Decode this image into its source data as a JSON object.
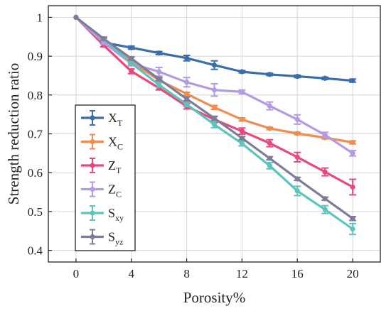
{
  "chart_data": {
    "type": "line",
    "xlabel": "Porosity%",
    "ylabel": "Strength reduction ratio",
    "xlim": [
      -2,
      22
    ],
    "ylim": [
      0.37,
      1.03
    ],
    "x_ticks": [
      "0",
      "4",
      "8",
      "12",
      "16",
      "20"
    ],
    "y_ticks": [
      "0.4",
      "0.5",
      "0.6",
      "0.7",
      "0.8",
      "0.9",
      "1"
    ],
    "grid": true,
    "legend_position": "bottom-left",
    "x": [
      0,
      2,
      4,
      6,
      8,
      10,
      12,
      14,
      16,
      18,
      20
    ],
    "series": [
      {
        "name": "X",
        "subscript": "T",
        "color": "#3b6ea8",
        "values": [
          1.0,
          0.935,
          0.922,
          0.908,
          0.895,
          0.877,
          0.86,
          0.853,
          0.848,
          0.843,
          0.837
        ],
        "errors": [
          0.0,
          0.004,
          0.004,
          0.004,
          0.007,
          0.011,
          0.003,
          0.003,
          0.003,
          0.003,
          0.004
        ]
      },
      {
        "name": "X",
        "subscript": "C",
        "color": "#ef8c52",
        "values": [
          1.0,
          0.942,
          0.886,
          0.838,
          0.803,
          0.768,
          0.737,
          0.714,
          0.701,
          0.69,
          0.678
        ],
        "errors": [
          0.0,
          0.004,
          0.004,
          0.004,
          0.004,
          0.005,
          0.004,
          0.003,
          0.003,
          0.003,
          0.004
        ]
      },
      {
        "name": "Z",
        "subscript": "T",
        "color": "#e8487a",
        "values": [
          1.0,
          0.928,
          0.861,
          0.818,
          0.771,
          0.737,
          0.707,
          0.676,
          0.64,
          0.602,
          0.563
        ],
        "errors": [
          0.0,
          0.004,
          0.006,
          0.005,
          0.007,
          0.008,
          0.008,
          0.009,
          0.012,
          0.01,
          0.02
        ]
      },
      {
        "name": "Z",
        "subscript": "C",
        "color": "#b39ae2",
        "values": [
          1.0,
          0.935,
          0.881,
          0.86,
          0.833,
          0.813,
          0.808,
          0.772,
          0.737,
          0.697,
          0.65
        ],
        "errors": [
          0.0,
          0.004,
          0.006,
          0.011,
          0.012,
          0.016,
          0.005,
          0.01,
          0.012,
          0.007,
          0.007
        ]
      },
      {
        "name": "S",
        "subscript": "xy",
        "color": "#5cc4bd",
        "values": [
          1.0,
          0.944,
          0.882,
          0.826,
          0.776,
          0.724,
          0.675,
          0.618,
          0.553,
          0.505,
          0.455
        ],
        "errors": [
          0.0,
          0.004,
          0.004,
          0.006,
          0.006,
          0.008,
          0.006,
          0.008,
          0.012,
          0.01,
          0.014
        ]
      },
      {
        "name": "S",
        "subscript": "yz",
        "color": "#7e7c98",
        "values": [
          1.0,
          0.945,
          0.894,
          0.841,
          0.79,
          0.74,
          0.689,
          0.637,
          0.584,
          0.533,
          0.482
        ],
        "errors": [
          0.0,
          0.004,
          0.004,
          0.004,
          0.005,
          0.005,
          0.004,
          0.004,
          0.004,
          0.004,
          0.005
        ]
      }
    ]
  }
}
